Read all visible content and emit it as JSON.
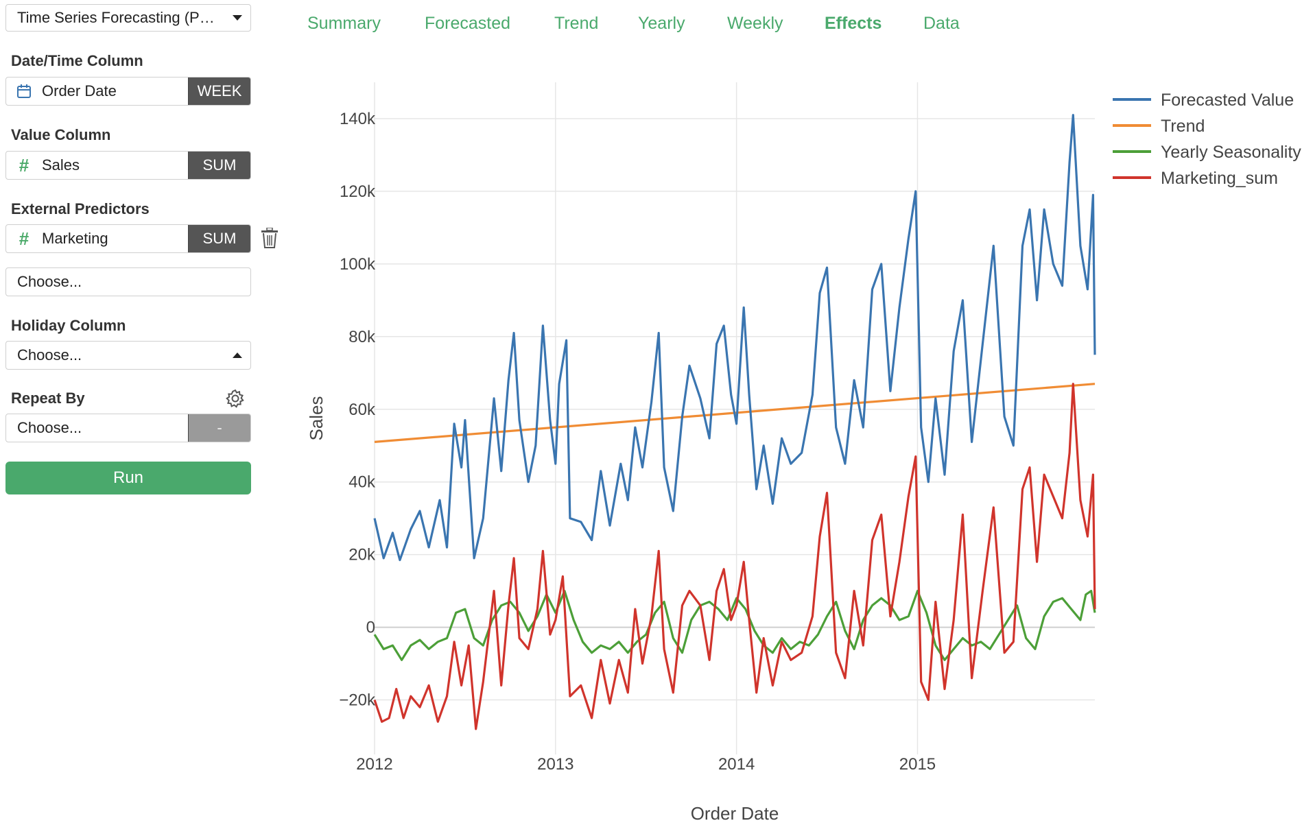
{
  "sidebar": {
    "model_select": "Time Series Forecasting (P…",
    "datetime_label": "Date/Time Column",
    "datetime_value": "Order Date",
    "datetime_unit": "WEEK",
    "value_label": "Value Column",
    "value_value": "Sales",
    "value_agg": "SUM",
    "predictors_label": "External Predictors",
    "predictor_value": "Marketing",
    "predictor_agg": "SUM",
    "predictor_choose": "Choose...",
    "holiday_label": "Holiday Column",
    "holiday_value": "Choose...",
    "repeat_label": "Repeat By",
    "repeat_value": "Choose...",
    "repeat_agg": "-",
    "run_label": "Run"
  },
  "tabs": [
    {
      "label": "Summary"
    },
    {
      "label": "Forecasted"
    },
    {
      "label": "Trend"
    },
    {
      "label": "Yearly"
    },
    {
      "label": "Weekly"
    },
    {
      "label": "Effects",
      "active": true
    },
    {
      "label": "Data"
    }
  ],
  "colors": {
    "accent": "#4aa96c",
    "forecast": "#3a75b0",
    "trend": "#f08c34",
    "yearly": "#4c9f38",
    "marketing": "#d0342c"
  },
  "chart_data": {
    "type": "line",
    "xlabel": "Order Date",
    "ylabel": "Sales",
    "x_unit": "year",
    "xlim": [
      2012.0,
      2015.98
    ],
    "ylim": [
      -35000,
      150000
    ],
    "x_ticks": [
      "2012",
      "2013",
      "2014",
      "2015"
    ],
    "y_ticks": [
      "−20k",
      "0",
      "20k",
      "40k",
      "60k",
      "80k",
      "100k",
      "120k",
      "140k"
    ],
    "y_tick_values": [
      -20000,
      0,
      20000,
      40000,
      60000,
      80000,
      100000,
      120000,
      140000
    ],
    "legend_position": "top-right",
    "series": [
      {
        "name": "Forecasted Value",
        "color": "#3a75b0",
        "points": [
          [
            2012.0,
            30000
          ],
          [
            2012.05,
            19000
          ],
          [
            2012.1,
            26000
          ],
          [
            2012.14,
            18500
          ],
          [
            2012.2,
            27000
          ],
          [
            2012.25,
            32000
          ],
          [
            2012.3,
            22000
          ],
          [
            2012.36,
            35000
          ],
          [
            2012.4,
            22000
          ],
          [
            2012.44,
            56000
          ],
          [
            2012.48,
            44000
          ],
          [
            2012.5,
            57000
          ],
          [
            2012.55,
            19000
          ],
          [
            2012.6,
            30000
          ],
          [
            2012.66,
            63000
          ],
          [
            2012.7,
            43000
          ],
          [
            2012.74,
            68000
          ],
          [
            2012.77,
            81000
          ],
          [
            2012.8,
            57000
          ],
          [
            2012.85,
            40000
          ],
          [
            2012.89,
            50000
          ],
          [
            2012.93,
            83000
          ],
          [
            2012.97,
            57000
          ],
          [
            2013.0,
            45000
          ],
          [
            2013.02,
            67000
          ],
          [
            2013.06,
            79000
          ],
          [
            2013.08,
            30000
          ],
          [
            2013.14,
            29000
          ],
          [
            2013.2,
            24000
          ],
          [
            2013.25,
            43000
          ],
          [
            2013.3,
            28000
          ],
          [
            2013.36,
            45000
          ],
          [
            2013.4,
            35000
          ],
          [
            2013.44,
            55000
          ],
          [
            2013.48,
            44000
          ],
          [
            2013.53,
            62000
          ],
          [
            2013.57,
            81000
          ],
          [
            2013.6,
            44000
          ],
          [
            2013.65,
            32000
          ],
          [
            2013.7,
            58000
          ],
          [
            2013.74,
            72000
          ],
          [
            2013.8,
            63000
          ],
          [
            2013.85,
            52000
          ],
          [
            2013.89,
            78000
          ],
          [
            2013.93,
            83000
          ],
          [
            2013.97,
            64000
          ],
          [
            2014.0,
            56000
          ],
          [
            2014.04,
            88000
          ],
          [
            2014.07,
            64000
          ],
          [
            2014.11,
            38000
          ],
          [
            2014.15,
            50000
          ],
          [
            2014.2,
            34000
          ],
          [
            2014.25,
            52000
          ],
          [
            2014.3,
            45000
          ],
          [
            2014.36,
            48000
          ],
          [
            2014.42,
            64000
          ],
          [
            2014.46,
            92000
          ],
          [
            2014.5,
            99000
          ],
          [
            2014.55,
            55000
          ],
          [
            2014.6,
            45000
          ],
          [
            2014.65,
            68000
          ],
          [
            2014.7,
            55000
          ],
          [
            2014.75,
            93000
          ],
          [
            2014.8,
            100000
          ],
          [
            2014.85,
            65000
          ],
          [
            2014.9,
            88000
          ],
          [
            2014.95,
            107000
          ],
          [
            2014.99,
            120000
          ],
          [
            2015.02,
            55000
          ],
          [
            2015.06,
            40000
          ],
          [
            2015.1,
            63000
          ],
          [
            2015.15,
            42000
          ],
          [
            2015.2,
            76000
          ],
          [
            2015.25,
            90000
          ],
          [
            2015.3,
            51000
          ],
          [
            2015.36,
            78000
          ],
          [
            2015.42,
            105000
          ],
          [
            2015.48,
            58000
          ],
          [
            2015.53,
            50000
          ],
          [
            2015.58,
            105000
          ],
          [
            2015.62,
            115000
          ],
          [
            2015.66,
            90000
          ],
          [
            2015.7,
            115000
          ],
          [
            2015.75,
            100000
          ],
          [
            2015.8,
            94000
          ],
          [
            2015.84,
            128000
          ],
          [
            2015.86,
            141000
          ],
          [
            2015.9,
            105000
          ],
          [
            2015.94,
            93000
          ],
          [
            2015.97,
            119000
          ],
          [
            2015.98,
            75000
          ]
        ]
      },
      {
        "name": "Trend",
        "color": "#f08c34",
        "points": [
          [
            2012.0,
            51000
          ],
          [
            2015.98,
            67000
          ]
        ]
      },
      {
        "name": "Yearly Seasonality",
        "color": "#4c9f38",
        "points": [
          [
            2012.0,
            -2000
          ],
          [
            2012.05,
            -6000
          ],
          [
            2012.1,
            -5000
          ],
          [
            2012.15,
            -9000
          ],
          [
            2012.2,
            -5000
          ],
          [
            2012.25,
            -3500
          ],
          [
            2012.3,
            -6000
          ],
          [
            2012.35,
            -4000
          ],
          [
            2012.4,
            -3000
          ],
          [
            2012.45,
            4000
          ],
          [
            2012.5,
            5000
          ],
          [
            2012.55,
            -3000
          ],
          [
            2012.6,
            -5000
          ],
          [
            2012.65,
            2000
          ],
          [
            2012.7,
            6000
          ],
          [
            2012.75,
            7000
          ],
          [
            2012.8,
            4000
          ],
          [
            2012.85,
            -1000
          ],
          [
            2012.9,
            3000
          ],
          [
            2012.95,
            9000
          ],
          [
            2013.0,
            4000
          ],
          [
            2013.05,
            10000
          ],
          [
            2013.1,
            2000
          ],
          [
            2013.15,
            -4000
          ],
          [
            2013.2,
            -7000
          ],
          [
            2013.25,
            -5000
          ],
          [
            2013.3,
            -6000
          ],
          [
            2013.35,
            -4000
          ],
          [
            2013.4,
            -7000
          ],
          [
            2013.45,
            -4000
          ],
          [
            2013.5,
            -2000
          ],
          [
            2013.55,
            4000
          ],
          [
            2013.6,
            7000
          ],
          [
            2013.65,
            -3000
          ],
          [
            2013.7,
            -7000
          ],
          [
            2013.75,
            2000
          ],
          [
            2013.8,
            6000
          ],
          [
            2013.85,
            7000
          ],
          [
            2013.9,
            5000
          ],
          [
            2013.95,
            2000
          ],
          [
            2014.0,
            8000
          ],
          [
            2014.05,
            5000
          ],
          [
            2014.1,
            -1000
          ],
          [
            2014.15,
            -5000
          ],
          [
            2014.2,
            -7000
          ],
          [
            2014.25,
            -3000
          ],
          [
            2014.3,
            -6000
          ],
          [
            2014.35,
            -4000
          ],
          [
            2014.4,
            -5000
          ],
          [
            2014.45,
            -2000
          ],
          [
            2014.5,
            3000
          ],
          [
            2014.55,
            7000
          ],
          [
            2014.6,
            -1000
          ],
          [
            2014.65,
            -6000
          ],
          [
            2014.7,
            2000
          ],
          [
            2014.75,
            6000
          ],
          [
            2014.8,
            8000
          ],
          [
            2014.85,
            6000
          ],
          [
            2014.9,
            2000
          ],
          [
            2014.95,
            3000
          ],
          [
            2015.0,
            10000
          ],
          [
            2015.05,
            4000
          ],
          [
            2015.1,
            -5000
          ],
          [
            2015.15,
            -9000
          ],
          [
            2015.2,
            -6000
          ],
          [
            2015.25,
            -3000
          ],
          [
            2015.3,
            -5000
          ],
          [
            2015.35,
            -4000
          ],
          [
            2015.4,
            -6000
          ],
          [
            2015.45,
            -2000
          ],
          [
            2015.5,
            2000
          ],
          [
            2015.55,
            6000
          ],
          [
            2015.6,
            -3000
          ],
          [
            2015.65,
            -6000
          ],
          [
            2015.7,
            3000
          ],
          [
            2015.75,
            7000
          ],
          [
            2015.8,
            8000
          ],
          [
            2015.85,
            5000
          ],
          [
            2015.9,
            2000
          ],
          [
            2015.93,
            9000
          ],
          [
            2015.96,
            10000
          ],
          [
            2015.98,
            4000
          ]
        ]
      },
      {
        "name": "Marketing_sum",
        "color": "#d0342c",
        "points": [
          [
            2012.0,
            -20000
          ],
          [
            2012.04,
            -26000
          ],
          [
            2012.08,
            -25000
          ],
          [
            2012.12,
            -17000
          ],
          [
            2012.16,
            -25000
          ],
          [
            2012.2,
            -19000
          ],
          [
            2012.25,
            -22000
          ],
          [
            2012.3,
            -16000
          ],
          [
            2012.35,
            -26000
          ],
          [
            2012.4,
            -19000
          ],
          [
            2012.44,
            -4000
          ],
          [
            2012.48,
            -16000
          ],
          [
            2012.52,
            -5000
          ],
          [
            2012.56,
            -28000
          ],
          [
            2012.6,
            -15000
          ],
          [
            2012.66,
            10000
          ],
          [
            2012.7,
            -16000
          ],
          [
            2012.74,
            6000
          ],
          [
            2012.77,
            19000
          ],
          [
            2012.8,
            -3000
          ],
          [
            2012.85,
            -6000
          ],
          [
            2012.9,
            5000
          ],
          [
            2012.93,
            21000
          ],
          [
            2012.97,
            -2000
          ],
          [
            2013.0,
            2000
          ],
          [
            2013.04,
            14000
          ],
          [
            2013.08,
            -19000
          ],
          [
            2013.14,
            -16000
          ],
          [
            2013.2,
            -25000
          ],
          [
            2013.25,
            -9000
          ],
          [
            2013.3,
            -21000
          ],
          [
            2013.35,
            -9000
          ],
          [
            2013.4,
            -18000
          ],
          [
            2013.44,
            5000
          ],
          [
            2013.48,
            -10000
          ],
          [
            2013.53,
            3000
          ],
          [
            2013.57,
            21000
          ],
          [
            2013.6,
            -6000
          ],
          [
            2013.65,
            -18000
          ],
          [
            2013.7,
            6000
          ],
          [
            2013.74,
            10000
          ],
          [
            2013.8,
            6000
          ],
          [
            2013.85,
            -9000
          ],
          [
            2013.89,
            10000
          ],
          [
            2013.93,
            16000
          ],
          [
            2013.97,
            2000
          ],
          [
            2014.0,
            6000
          ],
          [
            2014.04,
            18000
          ],
          [
            2014.07,
            2000
          ],
          [
            2014.11,
            -18000
          ],
          [
            2014.15,
            -3000
          ],
          [
            2014.2,
            -16000
          ],
          [
            2014.25,
            -4000
          ],
          [
            2014.3,
            -9000
          ],
          [
            2014.36,
            -7000
          ],
          [
            2014.42,
            3000
          ],
          [
            2014.46,
            25000
          ],
          [
            2014.5,
            37000
          ],
          [
            2014.55,
            -7000
          ],
          [
            2014.6,
            -14000
          ],
          [
            2014.65,
            10000
          ],
          [
            2014.7,
            -5000
          ],
          [
            2014.75,
            24000
          ],
          [
            2014.8,
            31000
          ],
          [
            2014.85,
            3000
          ],
          [
            2014.9,
            18000
          ],
          [
            2014.95,
            36000
          ],
          [
            2014.99,
            47000
          ],
          [
            2015.02,
            -15000
          ],
          [
            2015.06,
            -20000
          ],
          [
            2015.1,
            7000
          ],
          [
            2015.15,
            -17000
          ],
          [
            2015.2,
            2000
          ],
          [
            2015.25,
            31000
          ],
          [
            2015.3,
            -14000
          ],
          [
            2015.36,
            10000
          ],
          [
            2015.42,
            33000
          ],
          [
            2015.48,
            -7000
          ],
          [
            2015.53,
            -4000
          ],
          [
            2015.58,
            38000
          ],
          [
            2015.62,
            44000
          ],
          [
            2015.66,
            18000
          ],
          [
            2015.7,
            42000
          ],
          [
            2015.75,
            36000
          ],
          [
            2015.8,
            30000
          ],
          [
            2015.84,
            48000
          ],
          [
            2015.86,
            67000
          ],
          [
            2015.9,
            35000
          ],
          [
            2015.94,
            25000
          ],
          [
            2015.97,
            42000
          ],
          [
            2015.98,
            5000
          ]
        ]
      }
    ]
  }
}
